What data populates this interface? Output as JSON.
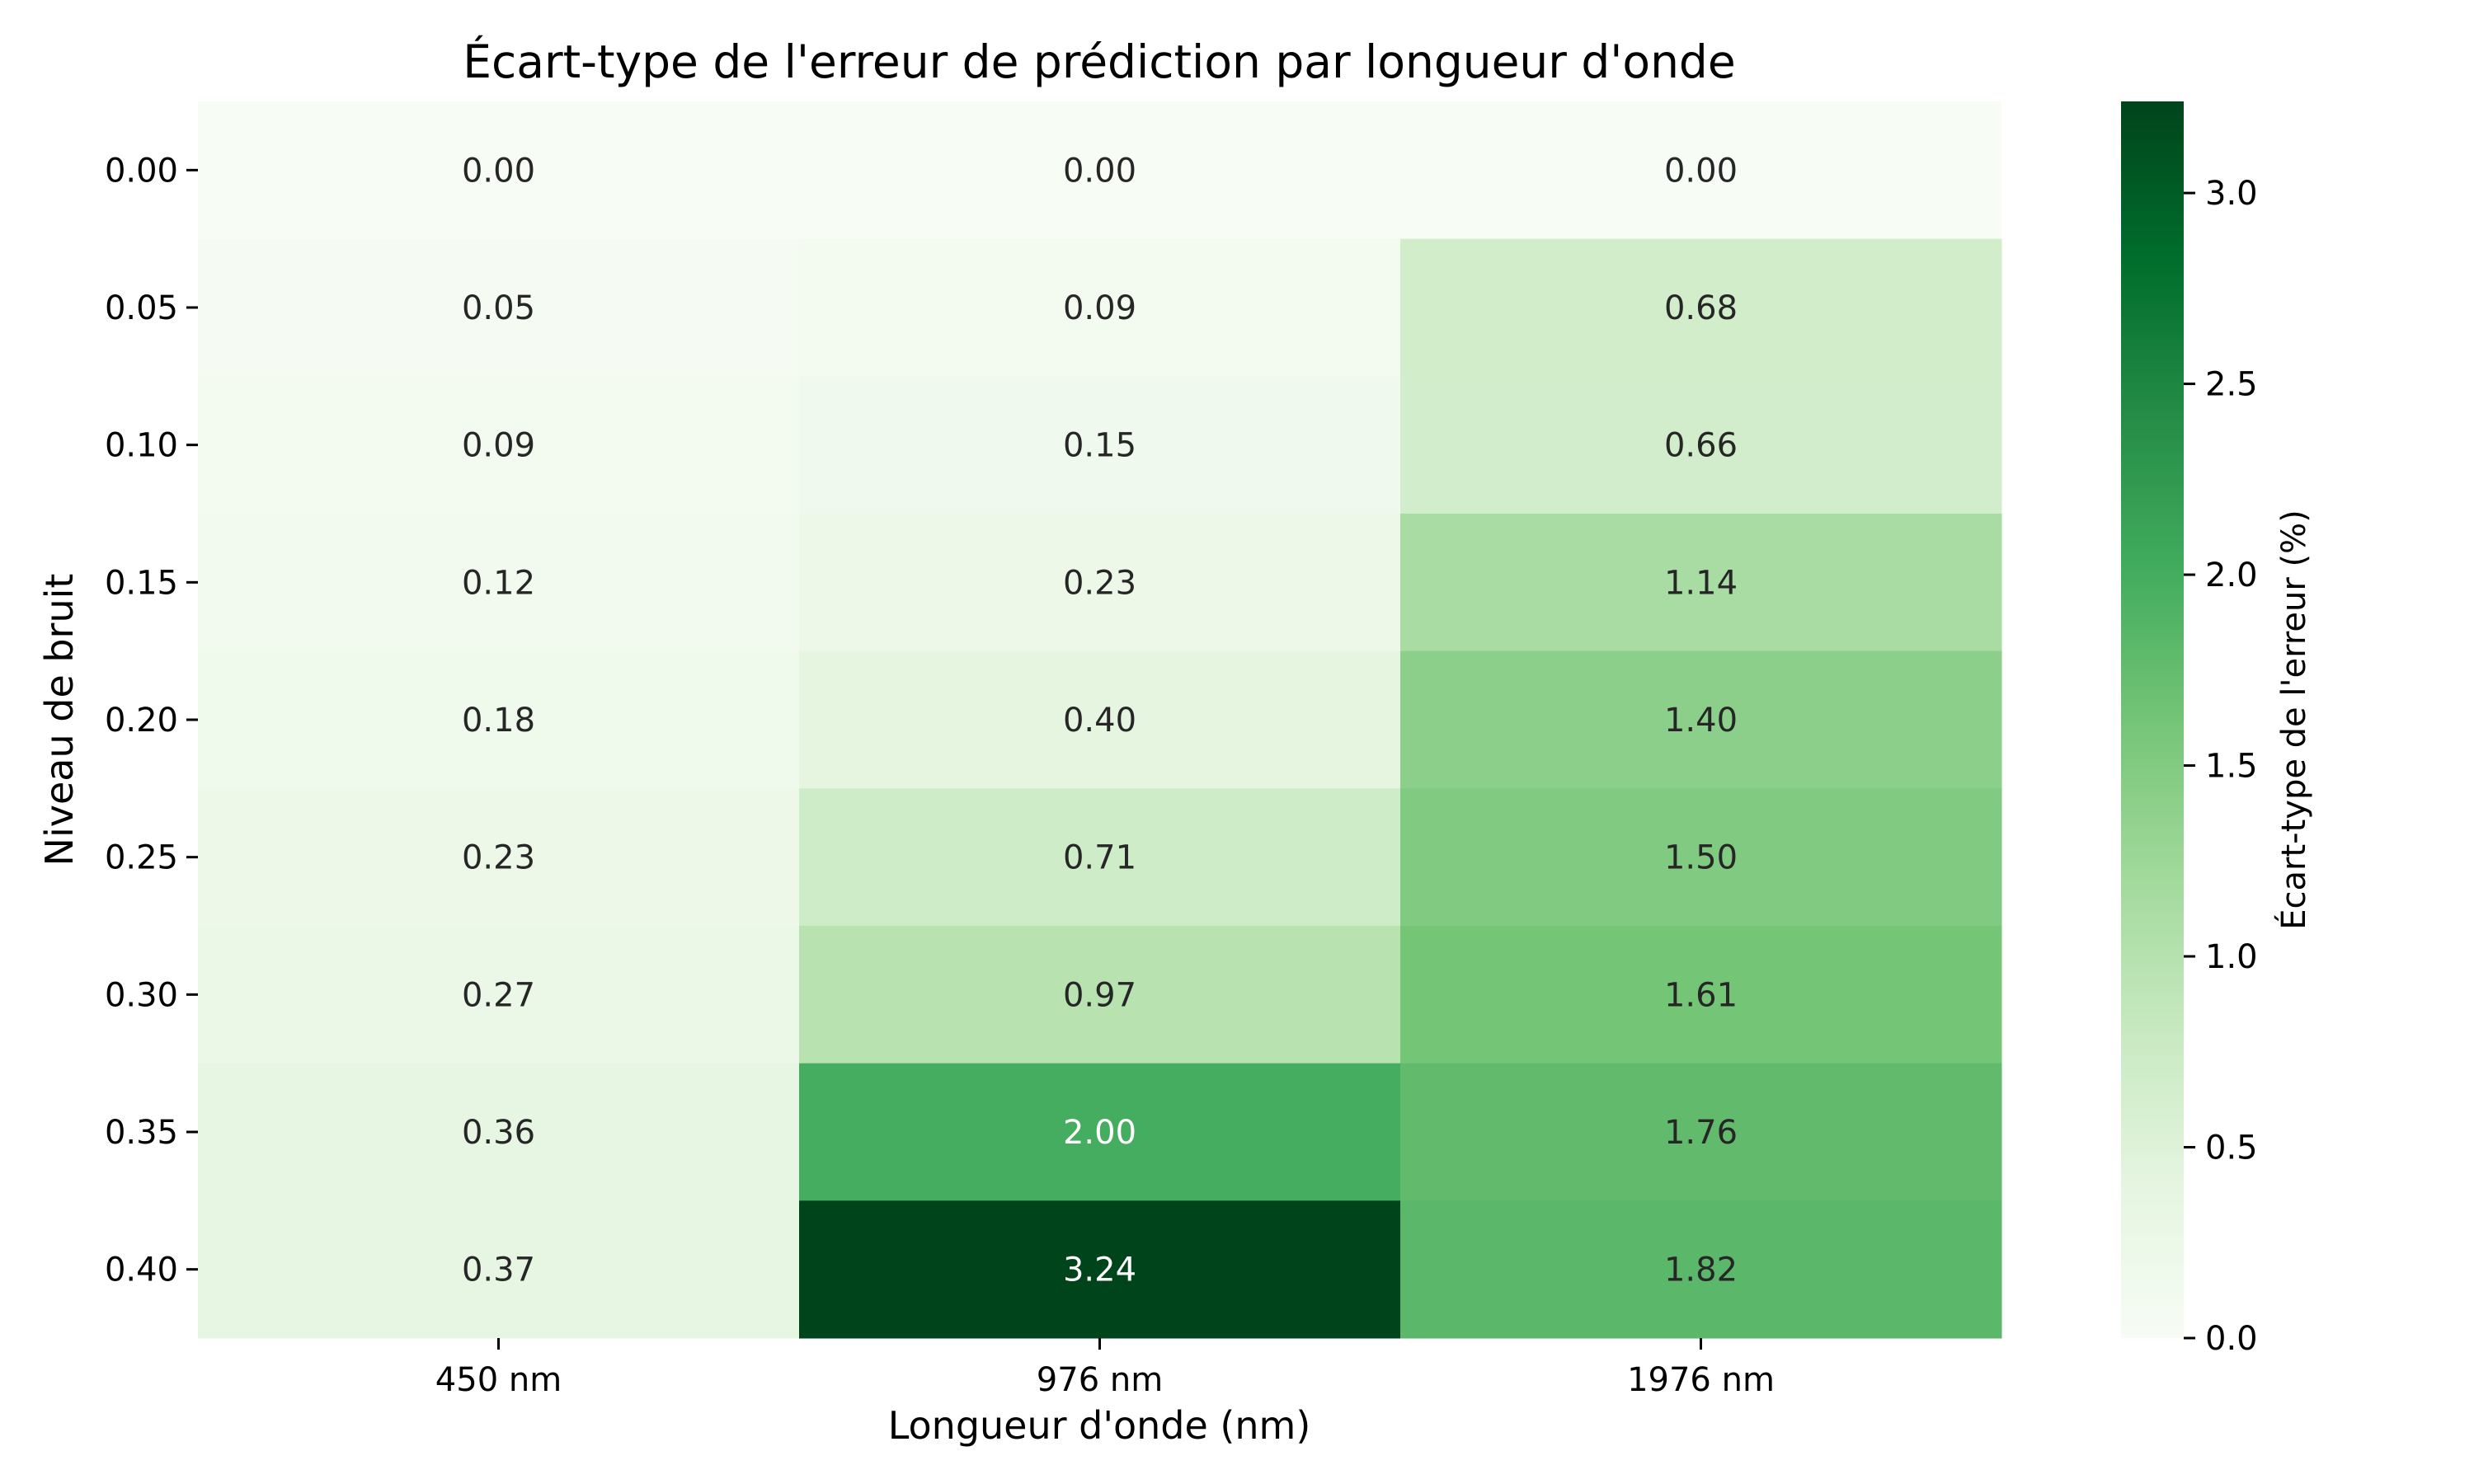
{
  "chart_data": {
    "type": "heatmap",
    "title": "Écart-type de l'erreur de prédiction par longueur d'onde",
    "xlabel": "Longueur d'onde (nm)",
    "ylabel": "Niveau de bruit",
    "x_categories": [
      "450 nm",
      "976 nm",
      "1976 nm"
    ],
    "y_categories": [
      "0.00",
      "0.05",
      "0.10",
      "0.15",
      "0.20",
      "0.25",
      "0.30",
      "0.35",
      "0.40"
    ],
    "values": [
      [
        0.0,
        0.0,
        0.0
      ],
      [
        0.05,
        0.09,
        0.68
      ],
      [
        0.09,
        0.15,
        0.66
      ],
      [
        0.12,
        0.23,
        1.14
      ],
      [
        0.18,
        0.4,
        1.4
      ],
      [
        0.23,
        0.71,
        1.5
      ],
      [
        0.27,
        0.97,
        1.61
      ],
      [
        0.36,
        2.0,
        1.76
      ],
      [
        0.37,
        3.24,
        1.82
      ]
    ],
    "value_labels": [
      [
        "0.00",
        "0.00",
        "0.00"
      ],
      [
        "0.05",
        "0.09",
        "0.68"
      ],
      [
        "0.09",
        "0.15",
        "0.66"
      ],
      [
        "0.12",
        "0.23",
        "1.14"
      ],
      [
        "0.18",
        "0.40",
        "1.40"
      ],
      [
        "0.23",
        "0.71",
        "1.50"
      ],
      [
        "0.27",
        "0.97",
        "1.61"
      ],
      [
        "0.36",
        "2.00",
        "1.76"
      ],
      [
        "0.37",
        "3.24",
        "1.82"
      ]
    ],
    "colormap": "Greens",
    "colorbar": {
      "label": "Écart-type de l'erreur (%)",
      "range": [
        0.0,
        3.24
      ],
      "ticks": [
        0.0,
        0.5,
        1.0,
        1.5,
        2.0,
        2.5,
        3.0
      ],
      "tick_labels": [
        "0.0",
        "0.5",
        "1.0",
        "1.5",
        "2.0",
        "2.5",
        "3.0"
      ]
    },
    "grid": false,
    "colors": {
      "low": "#f7fcf5",
      "high": "#00441b",
      "text_dark": "#262626",
      "text_light": "#ffffff"
    }
  }
}
